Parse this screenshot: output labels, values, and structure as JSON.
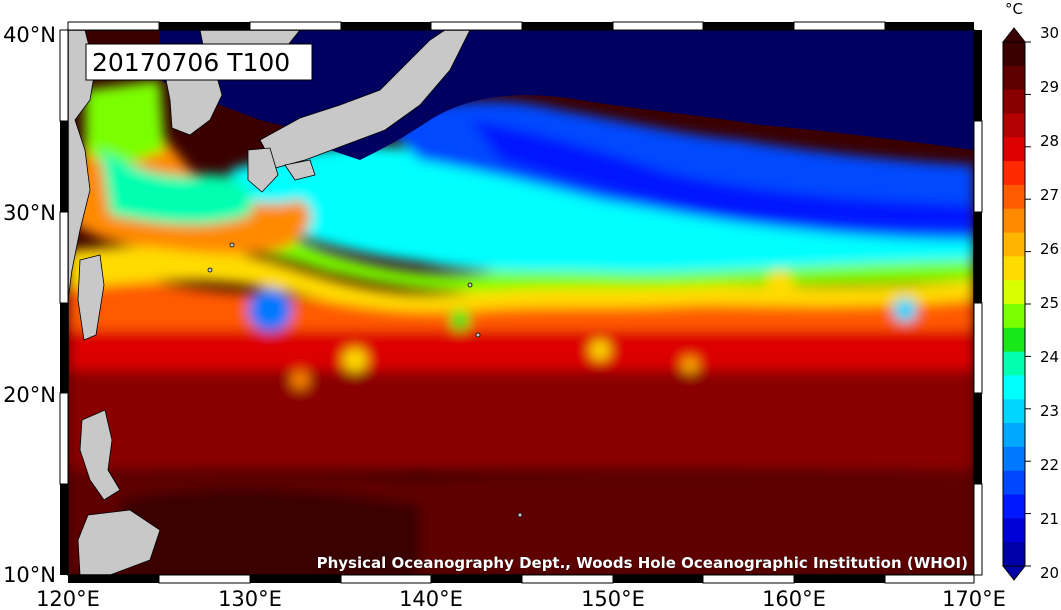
{
  "title": "20170706 T100",
  "credit": "Physical Oceanography Dept., Woods Hole Oceanographic Institution (WHOI)",
  "colorbar": {
    "unit": "°C",
    "ticks": [
      "30",
      "29",
      "28",
      "27",
      "26",
      "25",
      "24",
      "23",
      "22",
      "21",
      "20"
    ],
    "colors": [
      "#3a0000",
      "#5e0000",
      "#8a0000",
      "#b40000",
      "#dc0000",
      "#ff2a00",
      "#ff5a00",
      "#ff8a00",
      "#ffb400",
      "#ffdc00",
      "#d8ff00",
      "#7aff00",
      "#18e818",
      "#00ffb0",
      "#00ffff",
      "#00d6ff",
      "#00a8ff",
      "#0078ff",
      "#0048ff",
      "#0018ff",
      "#0000d8",
      "#0000a8"
    ]
  },
  "x_axis": {
    "ticks": [
      "120°E",
      "130°E",
      "140°E",
      "150°E",
      "160°E",
      "170°E"
    ]
  },
  "y_axis": {
    "ticks": [
      "40°N",
      "30°N",
      "20°N",
      "10°N"
    ]
  },
  "map": {
    "lon_range": [
      120,
      170
    ],
    "lat_range": [
      10,
      40
    ],
    "variable": "ocean temperature",
    "colors": {
      "land": "#c8c8c8",
      "deep_cold": "#000060"
    }
  }
}
